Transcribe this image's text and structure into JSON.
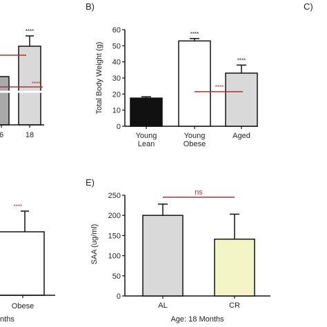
{
  "panels": {
    "a": {
      "tick_labels": [
        "6",
        "18"
      ],
      "star_labels": [
        "****",
        "****"
      ]
    },
    "c": {
      "label": "C)"
    },
    "d": {
      "category_label": "Obese",
      "xlabel_fragment": "nths",
      "star_label": "****"
    }
  },
  "chart_data": [
    {
      "id": "B",
      "panel_label": "B)",
      "type": "bar",
      "categories": [
        [
          "Young",
          "Lean"
        ],
        [
          "Young",
          "Obese"
        ],
        [
          "Aged"
        ]
      ],
      "values": [
        17.5,
        53,
        33
      ],
      "errors": [
        0.8,
        1.5,
        5
      ],
      "bar_colors": [
        "#111111",
        "#ffffff",
        "#d9d9d9"
      ],
      "ylabel": "Total Body Weight (g)",
      "ylim": [
        0,
        60
      ],
      "yticks": [
        "0",
        "10",
        "20",
        "30",
        "40",
        "50",
        "60"
      ],
      "annotations": [
        {
          "text": "****",
          "category": 1
        },
        {
          "text": "****",
          "category": 2
        },
        {
          "text": "****",
          "type": "line",
          "color": "#b03030",
          "y": 21.5
        }
      ]
    },
    {
      "id": "E",
      "panel_label": "E)",
      "type": "bar",
      "categories": [
        "AL",
        "CR"
      ],
      "values": [
        200,
        141
      ],
      "errors": [
        28,
        62
      ],
      "bar_colors": [
        "#d9d9d9",
        "#f3f5c6"
      ],
      "ylabel": "SAA (ug/ml)",
      "xlabel": "Age: 18 Months",
      "ylim": [
        0,
        250
      ],
      "yticks": [
        "0",
        "50",
        "100",
        "150",
        "200",
        "250"
      ],
      "annotations": [
        {
          "text": "ns",
          "type": "line",
          "color": "#b03030",
          "y": 245
        }
      ]
    }
  ]
}
